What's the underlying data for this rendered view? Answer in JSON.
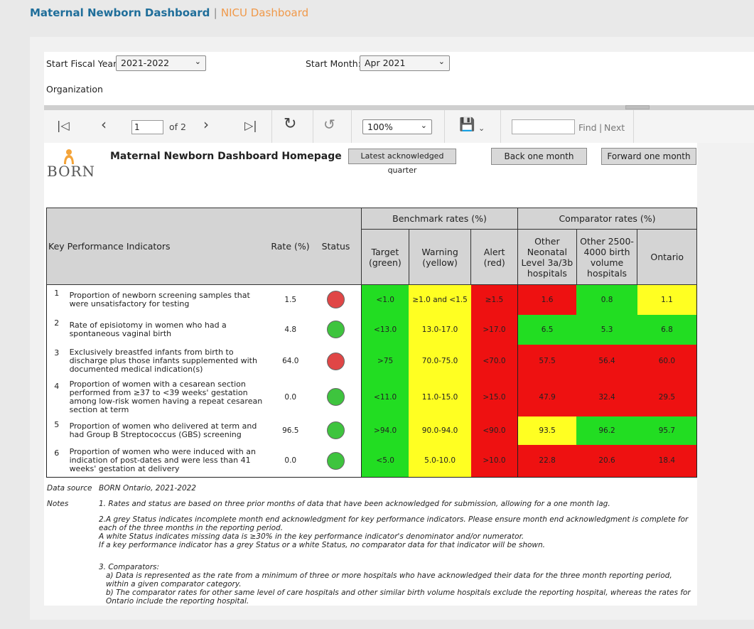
{
  "nav": {
    "maternal": "Maternal Newborn Dashboard",
    "separator": "|",
    "nicu": "NICU Dashboard"
  },
  "params": {
    "fiscal_year_label": "Start Fiscal Year:",
    "fiscal_year_value": "2021-2022",
    "month_label": "Start Month:",
    "month_value": "Apr 2021",
    "organization_label": "Organization"
  },
  "toolbar": {
    "page": "1",
    "of": "of 2",
    "zoom": "100%",
    "find": "Find",
    "sep": "|",
    "next": "Next"
  },
  "report": {
    "title": "Maternal Newborn Dashboard Homepage",
    "latest_btn": "Latest acknowledged quarter",
    "back_btn": "Back one month",
    "forward_btn": "Forward one month",
    "logo_text": "BORN"
  },
  "table": {
    "kpi_header": "Key Performance Indicators",
    "rate_header": "Rate (%)",
    "status_header": "Status",
    "benchmark_header": "Benchmark rates (%)",
    "comparator_header": "Comparator rates (%)",
    "target_header": "Target (green)",
    "warning_header": "Warning (yellow)",
    "alert_header": "Alert (red)",
    "other_level_header": "Other Neonatal Level 3a/3b hospitals",
    "other_volume_header": "Other 2500-4000 birth volume hospitals",
    "ontario_header": "Ontario",
    "rows": [
      {
        "no": "1",
        "name": "Proportion of newborn screening samples that were unsatisfactory for testing",
        "rate": "1.5",
        "status": "red",
        "target": "<1.0",
        "warning": "≥1.0 and <1.5",
        "alert": "≥1.5",
        "c1": "1.6",
        "c1c": "r",
        "c2": "0.8",
        "c2c": "g",
        "c3": "1.1",
        "c3c": "y"
      },
      {
        "no": "2",
        "name": "Rate of episiotomy in women who had a spontaneous vaginal birth",
        "rate": "4.8",
        "status": "green",
        "target": "<13.0",
        "warning": "13.0-17.0",
        "alert": ">17.0",
        "c1": "6.5",
        "c1c": "g",
        "c2": "5.3",
        "c2c": "g",
        "c3": "6.8",
        "c3c": "g"
      },
      {
        "no": "3",
        "name": "Exclusively breastfed infants from birth to discharge plus those infants supplemented with documented medical indication(s)",
        "rate": "64.0",
        "status": "red",
        "target": ">75",
        "warning": "70.0-75.0",
        "alert": "<70.0",
        "c1": "57.5",
        "c1c": "r",
        "c2": "56.4",
        "c2c": "r",
        "c3": "60.0",
        "c3c": "r"
      },
      {
        "no": "4",
        "name": "Proportion of women with a cesarean section performed from ≥37 to <39 weeks' gestation among low-risk women having a repeat cesarean section at term",
        "rate": "0.0",
        "status": "green",
        "target": "<11.0",
        "warning": "11.0-15.0",
        "alert": ">15.0",
        "c1": "47.9",
        "c1c": "r",
        "c2": "32.4",
        "c2c": "r",
        "c3": "29.5",
        "c3c": "r"
      },
      {
        "no": "5",
        "name": "Proportion of women who delivered at term and had Group B Streptococcus (GBS) screening",
        "rate": "96.5",
        "status": "green",
        "target": ">94.0",
        "warning": "90.0-94.0",
        "alert": "<90.0",
        "c1": "93.5",
        "c1c": "y",
        "c2": "96.2",
        "c2c": "g",
        "c3": "95.7",
        "c3c": "g"
      },
      {
        "no": "6",
        "name": "Proportion of women who were induced with an indication of post-dates and were less than 41 weeks' gestation at delivery",
        "rate": "0.0",
        "status": "green",
        "target": "<5.0",
        "warning": "5.0-10.0",
        "alert": ">10.0",
        "c1": "22.8",
        "c1c": "r",
        "c2": "20.6",
        "c2c": "r",
        "c3": "18.4",
        "c3c": "r"
      }
    ]
  },
  "notes": {
    "data_source_label": "Data source",
    "data_source_value": "BORN Ontario, 2021-2022",
    "notes_label": "Notes",
    "n1": "1. Rates and status are based on three prior months of data that have been acknowledged for submission, allowing for a one month lag.",
    "n2a": "2.A grey Status indicates incomplete month end acknowledgment for key performance indicators. Please ensure month end acknowledgment is complete for each of the three months in the reporting period.",
    "n2b": "A white Status indicates missing data is ≥30% in the key performance indicator's denominator and/or numerator.",
    "n2c": "If a key performance indicator has a grey Status or a white Status, no comparator data for that indicator will be shown.",
    "n3": "3. Comparators:",
    "n3a": "a) Data is represented as the rate from a minimum of three or more hospitals who have acknowledged their data for the three month reporting period, within a given comparator category.",
    "n3b": "b) The comparator rates for other same level of care hospitals and other similar birth volume hospitals exclude the reporting hospital, whereas the rates for Ontario include the reporting hospital."
  }
}
